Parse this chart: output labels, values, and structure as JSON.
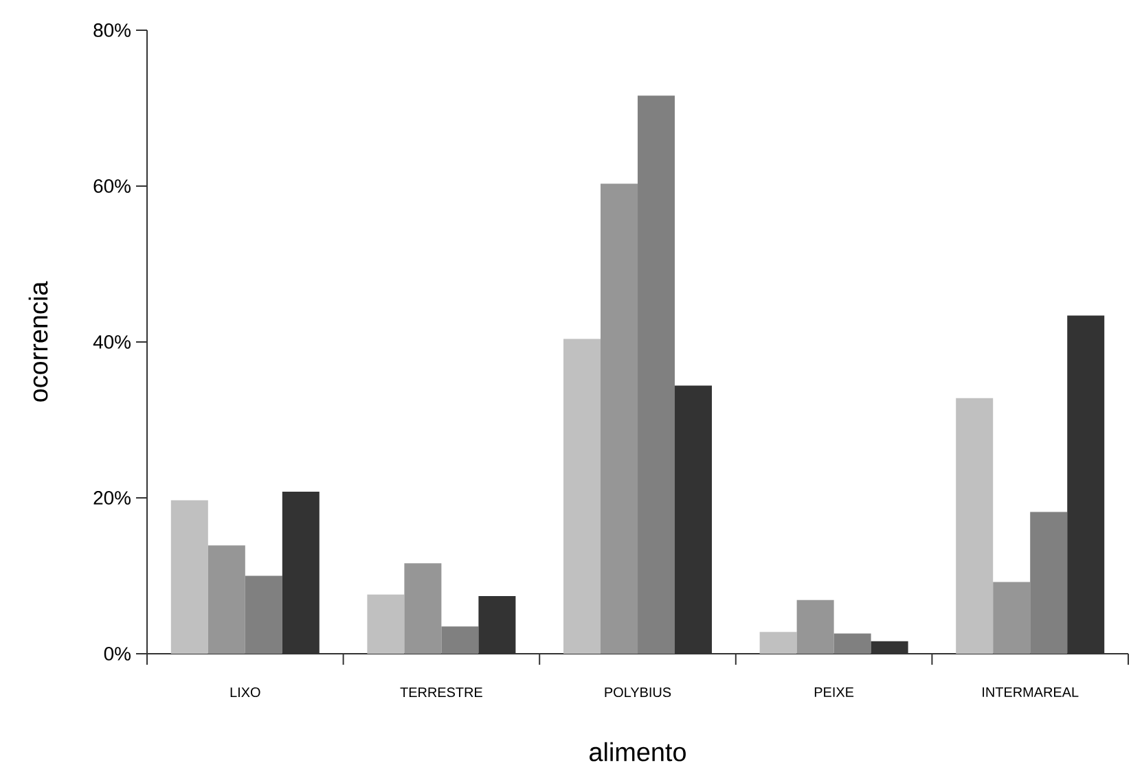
{
  "chart_data": {
    "type": "bar",
    "xlabel": "alimento",
    "ylabel": "ocorrencia",
    "categories": [
      "LIXO",
      "TERRESTRE",
      "POLYBIUS",
      "PEIXE",
      "INTERMAREAL"
    ],
    "series": [
      {
        "color": "#c0c0c0",
        "values": [
          19.7,
          7.6,
          40.4,
          2.8,
          32.8
        ]
      },
      {
        "color": "#969696",
        "values": [
          13.9,
          11.6,
          60.3,
          6.9,
          9.2
        ]
      },
      {
        "color": "#808080",
        "values": [
          10.0,
          3.5,
          71.6,
          2.6,
          18.2
        ]
      },
      {
        "color": "#333333",
        "values": [
          20.8,
          7.4,
          34.4,
          1.6,
          43.4
        ]
      }
    ],
    "ylim": [
      0,
      80
    ],
    "yticks": [
      {
        "value": 0,
        "label": "0%"
      },
      {
        "value": 20,
        "label": "20%"
      },
      {
        "value": 40,
        "label": "40%"
      },
      {
        "value": 60,
        "label": "60%"
      },
      {
        "value": 80,
        "label": "80%"
      }
    ],
    "grid": false
  }
}
